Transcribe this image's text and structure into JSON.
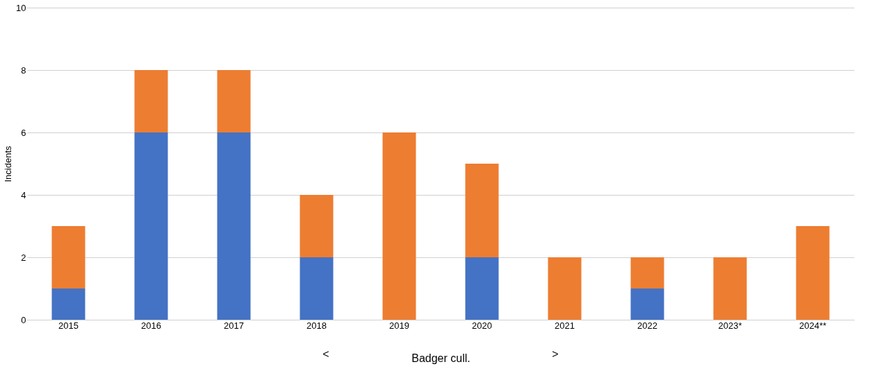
{
  "chart_data": {
    "type": "bar",
    "stacked": true,
    "ylabel": "Incidents",
    "xlabel": "Badger cull.",
    "annotations": [
      "<",
      ">"
    ],
    "categories": [
      "2015",
      "2016",
      "2017",
      "2018",
      "2019",
      "2020",
      "2021",
      "2022",
      "2023*",
      "2024**"
    ],
    "series": [
      {
        "color": "#4472c4",
        "values": [
          1,
          6,
          6,
          2,
          0,
          2,
          0,
          1,
          0,
          0
        ]
      },
      {
        "color": "#ed7d31",
        "values": [
          2,
          2,
          2,
          2,
          6,
          3,
          2,
          1,
          2,
          3
        ]
      }
    ],
    "ylim": [
      0,
      10
    ],
    "yticks": [
      0,
      2,
      4,
      6,
      8,
      10
    ],
    "grid": "y",
    "legend": false
  }
}
